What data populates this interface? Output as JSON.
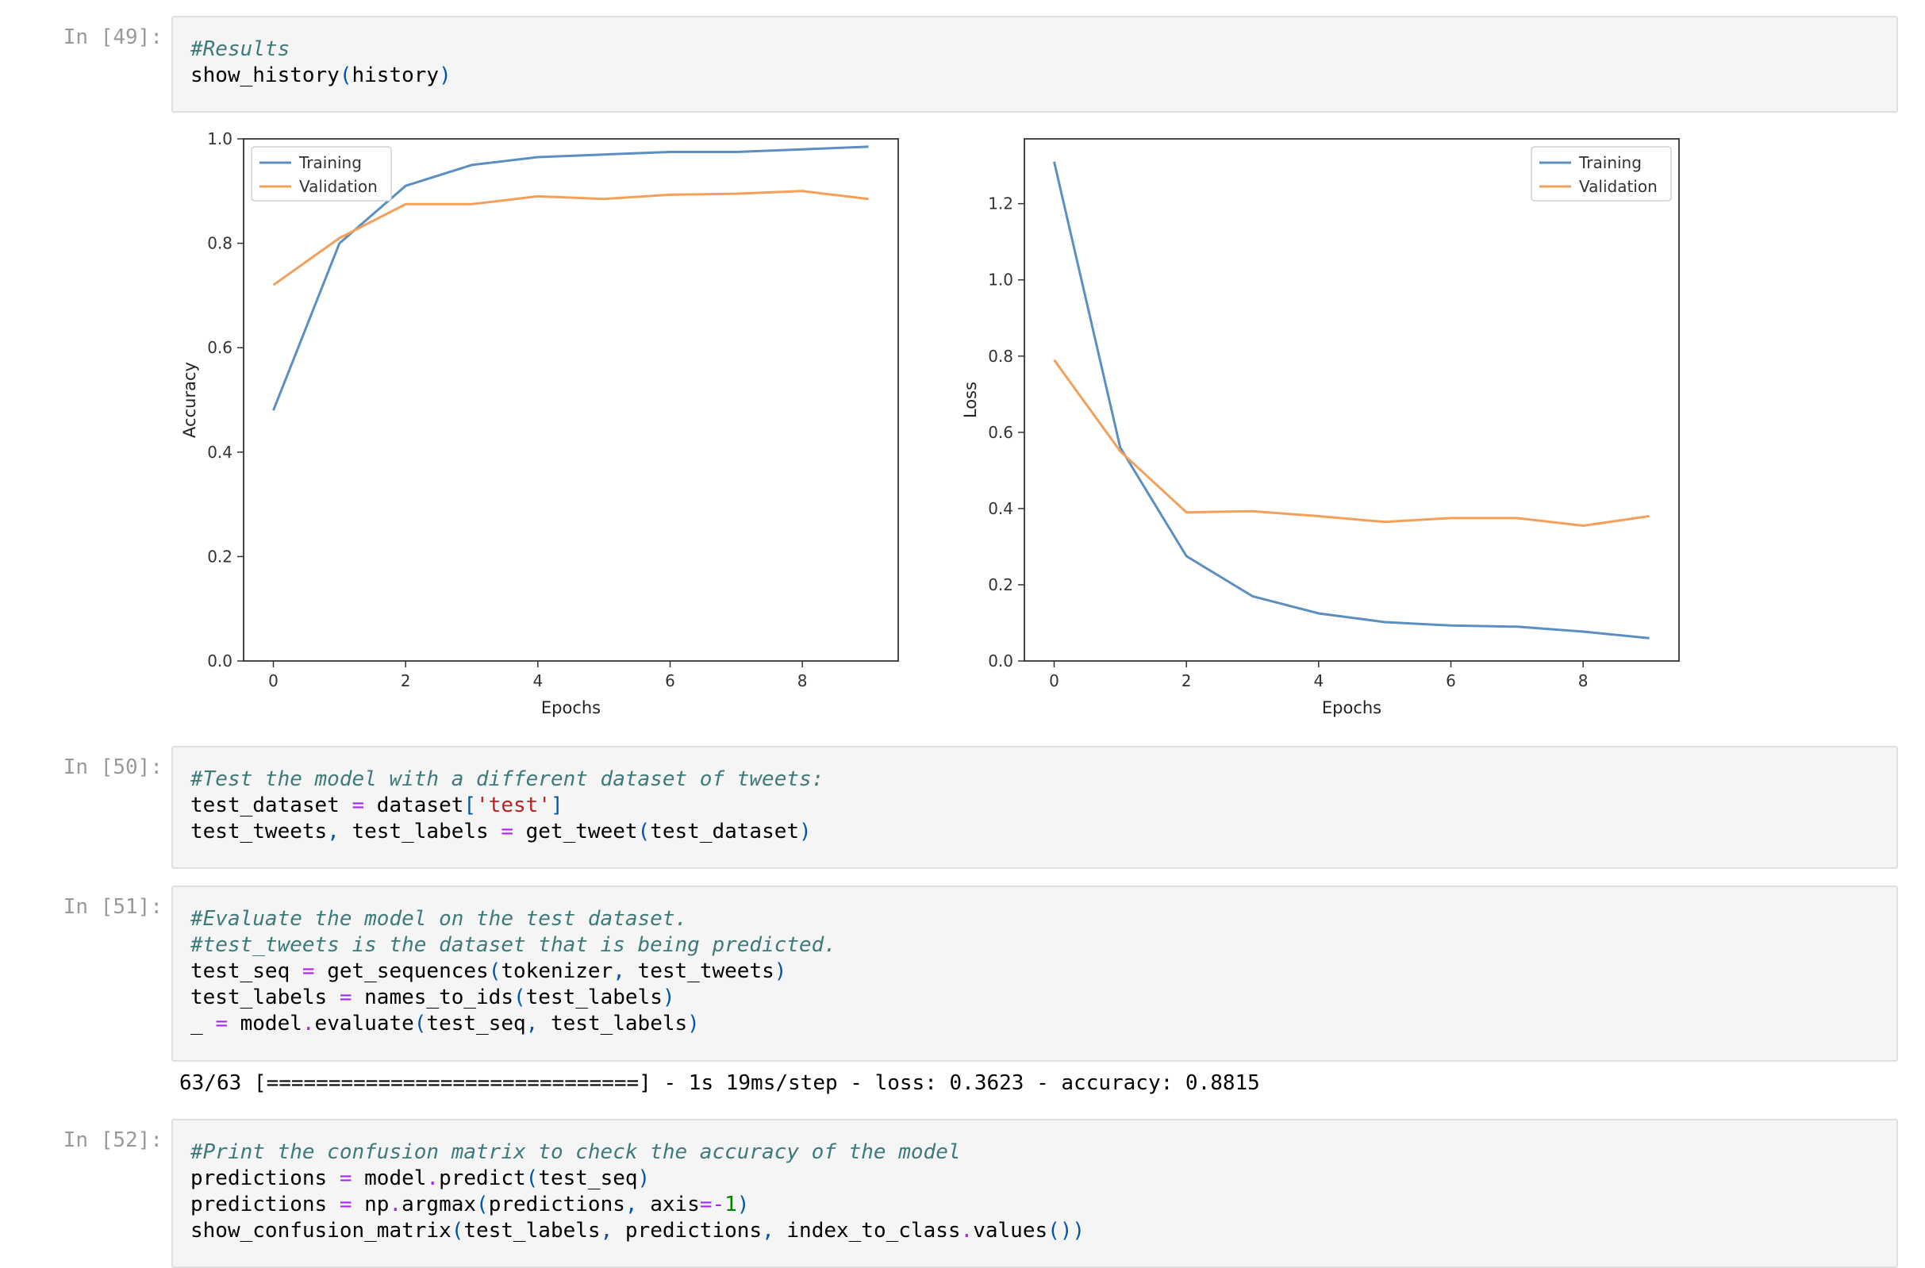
{
  "cells": [
    {
      "prompt": "In [49]:",
      "lines": [
        [
          {
            "t": "#Results",
            "c": "cm"
          }
        ],
        [
          {
            "t": "show_history",
            "c": ""
          },
          {
            "t": "(",
            "c": "pn"
          },
          {
            "t": "history",
            "c": ""
          },
          {
            "t": ")",
            "c": "pn"
          }
        ]
      ]
    },
    {
      "prompt": "In [50]:",
      "lines": [
        [
          {
            "t": "#Test the model with a different dataset of tweets:",
            "c": "cm"
          }
        ],
        [
          {
            "t": "test_dataset ",
            "c": ""
          },
          {
            "t": "=",
            "c": "op"
          },
          {
            "t": " dataset",
            "c": ""
          },
          {
            "t": "[",
            "c": "pn"
          },
          {
            "t": "'test'",
            "c": "st"
          },
          {
            "t": "]",
            "c": "pn"
          }
        ],
        [
          {
            "t": "test_tweets",
            "c": ""
          },
          {
            "t": ",",
            "c": "pn"
          },
          {
            "t": " test_labels ",
            "c": ""
          },
          {
            "t": "=",
            "c": "op"
          },
          {
            "t": " get_tweet",
            "c": ""
          },
          {
            "t": "(",
            "c": "pn"
          },
          {
            "t": "test_dataset",
            "c": ""
          },
          {
            "t": ")",
            "c": "pn"
          }
        ]
      ]
    },
    {
      "prompt": "In [51]:",
      "lines": [
        [
          {
            "t": "#Evaluate the model on the test dataset.",
            "c": "cm"
          }
        ],
        [
          {
            "t": "#test_tweets is the dataset that is being predicted.",
            "c": "cm"
          }
        ],
        [
          {
            "t": "test_seq ",
            "c": ""
          },
          {
            "t": "=",
            "c": "op"
          },
          {
            "t": " get_sequences",
            "c": ""
          },
          {
            "t": "(",
            "c": "pn"
          },
          {
            "t": "tokenizer",
            "c": ""
          },
          {
            "t": ",",
            "c": "pn"
          },
          {
            "t": " test_tweets",
            "c": ""
          },
          {
            "t": ")",
            "c": "pn"
          }
        ],
        [
          {
            "t": "test_labels ",
            "c": ""
          },
          {
            "t": "=",
            "c": "op"
          },
          {
            "t": " names_to_ids",
            "c": ""
          },
          {
            "t": "(",
            "c": "pn"
          },
          {
            "t": "test_labels",
            "c": ""
          },
          {
            "t": ")",
            "c": "pn"
          }
        ],
        [
          {
            "t": "_ ",
            "c": ""
          },
          {
            "t": "=",
            "c": "op"
          },
          {
            "t": " model",
            "c": ""
          },
          {
            "t": ".",
            "c": "op"
          },
          {
            "t": "evaluate",
            "c": ""
          },
          {
            "t": "(",
            "c": "pn"
          },
          {
            "t": "test_seq",
            "c": ""
          },
          {
            "t": ",",
            "c": "pn"
          },
          {
            "t": " test_labels",
            "c": ""
          },
          {
            "t": ")",
            "c": "pn"
          }
        ]
      ],
      "output": "63/63 [==============================] - 1s 19ms/step - loss: 0.3623 - accuracy: 0.8815"
    },
    {
      "prompt": "In [52]:",
      "lines": [
        [
          {
            "t": "#Print the confusion matrix to check the accuracy of the model",
            "c": "cm"
          }
        ],
        [
          {
            "t": "predictions ",
            "c": ""
          },
          {
            "t": "=",
            "c": "op"
          },
          {
            "t": " model",
            "c": ""
          },
          {
            "t": ".",
            "c": "op"
          },
          {
            "t": "predict",
            "c": ""
          },
          {
            "t": "(",
            "c": "pn"
          },
          {
            "t": "test_seq",
            "c": ""
          },
          {
            "t": ")",
            "c": "pn"
          }
        ],
        [
          {
            "t": "predictions ",
            "c": ""
          },
          {
            "t": "=",
            "c": "op"
          },
          {
            "t": " np",
            "c": ""
          },
          {
            "t": ".",
            "c": "op"
          },
          {
            "t": "argmax",
            "c": ""
          },
          {
            "t": "(",
            "c": "pn"
          },
          {
            "t": "predictions",
            "c": ""
          },
          {
            "t": ",",
            "c": "pn"
          },
          {
            "t": " axis",
            "c": ""
          },
          {
            "t": "=-",
            "c": "op"
          },
          {
            "t": "1",
            "c": "nm"
          },
          {
            "t": ")",
            "c": "pn"
          }
        ],
        [
          {
            "t": "show_confusion_matrix",
            "c": ""
          },
          {
            "t": "(",
            "c": "pn"
          },
          {
            "t": "test_labels",
            "c": ""
          },
          {
            "t": ",",
            "c": "pn"
          },
          {
            "t": " predictions",
            "c": ""
          },
          {
            "t": ",",
            "c": "pn"
          },
          {
            "t": " index_to_class",
            "c": ""
          },
          {
            "t": ".",
            "c": "op"
          },
          {
            "t": "values",
            "c": ""
          },
          {
            "t": "())",
            "c": "pn"
          }
        ]
      ]
    }
  ],
  "colors": {
    "training": "#5b8fc2",
    "validation": "#f5a05a"
  },
  "chart_data": [
    {
      "type": "line",
      "xlabel": "Epochs",
      "ylabel": "Accuracy",
      "xlim": [
        -0.45,
        9.45
      ],
      "ylim": [
        0.0,
        1.0
      ],
      "xticks": [
        0,
        2,
        4,
        6,
        8
      ],
      "xtick_labels": [
        "0",
        "2",
        "4",
        "6",
        "8"
      ],
      "yticks": [
        0.0,
        0.2,
        0.4,
        0.6,
        0.8,
        1.0
      ],
      "ytick_labels": [
        "0.0",
        "0.2",
        "0.4",
        "0.6",
        "0.8",
        "1.0"
      ],
      "legend": "top-left",
      "x": [
        0,
        1,
        2,
        3,
        4,
        5,
        6,
        7,
        8,
        9
      ],
      "series": [
        {
          "name": "Training",
          "values": [
            0.48,
            0.8,
            0.91,
            0.95,
            0.965,
            0.97,
            0.975,
            0.975,
            0.98,
            0.985
          ]
        },
        {
          "name": "Validation",
          "values": [
            0.72,
            0.81,
            0.875,
            0.875,
            0.89,
            0.885,
            0.893,
            0.895,
            0.9,
            0.885
          ]
        }
      ]
    },
    {
      "type": "line",
      "xlabel": "Epochs",
      "ylabel": "Loss",
      "xlim": [
        -0.45,
        9.45
      ],
      "ylim": [
        0.0,
        1.37
      ],
      "xticks": [
        0,
        2,
        4,
        6,
        8
      ],
      "xtick_labels": [
        "0",
        "2",
        "4",
        "6",
        "8"
      ],
      "yticks": [
        0.0,
        0.2,
        0.4,
        0.6,
        0.8,
        1.0,
        1.2
      ],
      "ytick_labels": [
        "0.0",
        "0.2",
        "0.4",
        "0.6",
        "0.8",
        "1.0",
        "1.2"
      ],
      "legend": "top-right",
      "x": [
        0,
        1,
        2,
        3,
        4,
        5,
        6,
        7,
        8,
        9
      ],
      "series": [
        {
          "name": "Training",
          "values": [
            1.31,
            0.56,
            0.275,
            0.17,
            0.125,
            0.102,
            0.093,
            0.09,
            0.077,
            0.06
          ]
        },
        {
          "name": "Validation",
          "values": [
            0.79,
            0.55,
            0.39,
            0.393,
            0.38,
            0.365,
            0.375,
            0.375,
            0.355,
            0.38
          ]
        }
      ]
    }
  ]
}
